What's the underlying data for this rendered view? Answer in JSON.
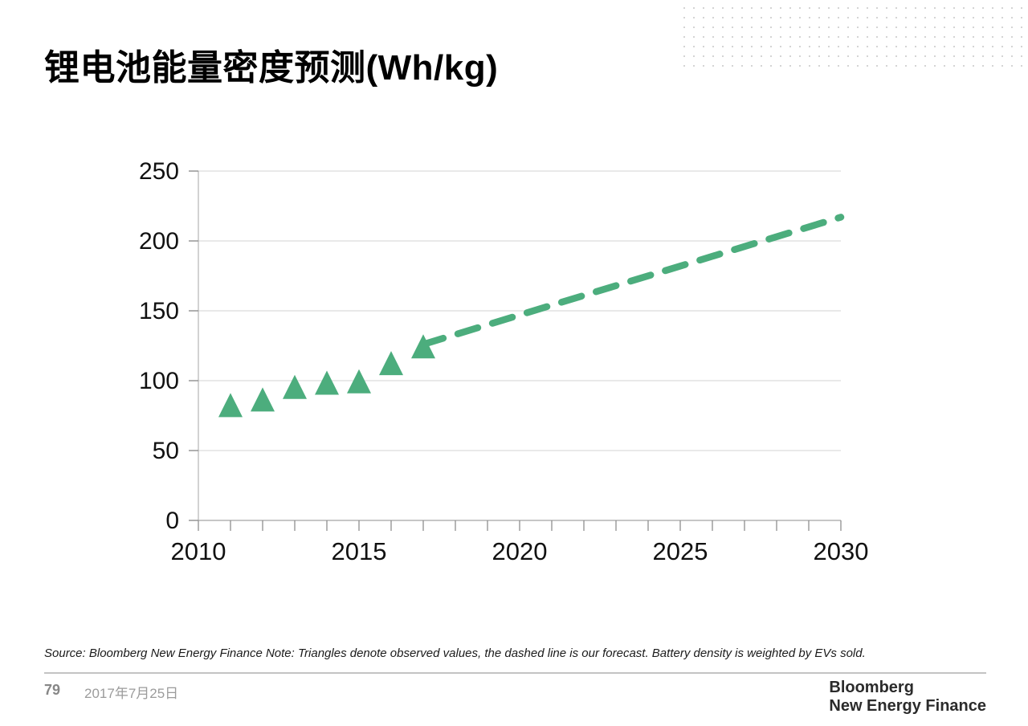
{
  "page": {
    "title": "锂电池能量密度预测(Wh/kg)",
    "source_note": "Source: Bloomberg New Energy Finance Note: Triangles denote observed values, the dashed line is our forecast. Battery density is weighted by EVs sold.",
    "footer": {
      "page_number": "79",
      "date": "2017年7月25日",
      "logo_line1": "Bloomberg",
      "logo_line2": "New Energy Finance"
    }
  },
  "colors": {
    "accent_green": "#4cad7d",
    "gridline": "#dcdcdc",
    "baseline": "#b3b3b3",
    "y_axis": "#c6c6c6",
    "tick": "#8f8f8f",
    "axis_text": "#111111",
    "dot_pattern": "#c6c6c6"
  },
  "chart_data": {
    "type": "scatter",
    "title": "锂电池能量密度预测(Wh/kg)",
    "xlabel": "",
    "ylabel": "Wh/kg",
    "xlim": [
      2010,
      2030
    ],
    "ylim": [
      0,
      250
    ],
    "x_ticks": [
      2010,
      2015,
      2020,
      2025,
      2030
    ],
    "x_minor_tick_step": 1,
    "y_ticks": [
      0,
      50,
      100,
      150,
      200,
      250
    ],
    "grid": "horizontal",
    "legend": "none",
    "series": [
      {
        "name": "Observed values",
        "type": "scatter",
        "marker": "triangle",
        "color": "#4cad7d",
        "x": [
          2011,
          2012,
          2013,
          2014,
          2015,
          2016,
          2017
        ],
        "y": [
          82,
          86,
          95,
          98,
          99,
          112,
          124
        ]
      },
      {
        "name": "Forecast",
        "type": "line",
        "style": "dashed",
        "color": "#4cad7d",
        "x": [
          2017,
          2030
        ],
        "y": [
          126,
          217
        ]
      }
    ]
  }
}
